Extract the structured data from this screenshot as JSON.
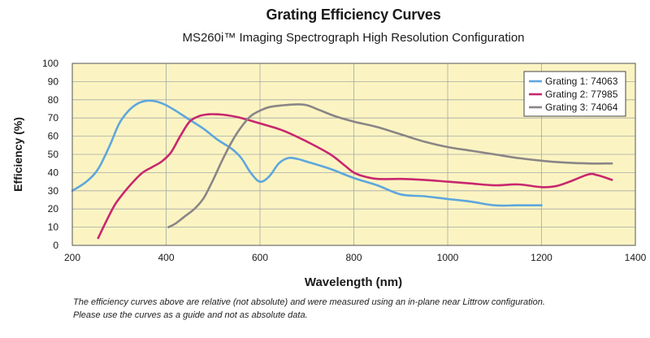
{
  "chart_data": {
    "type": "line",
    "title": "Grating Efficiency Curves",
    "subtitle": "MS260i™ Imaging Spectrograph High Resolution Configuration",
    "xlabel": "Wavelength (nm)",
    "ylabel": "Efficiency (%)",
    "xlim": [
      200,
      1400
    ],
    "ylim": [
      0,
      100
    ],
    "x_ticks": [
      200,
      400,
      600,
      800,
      1000,
      1200,
      1400
    ],
    "y_ticks": [
      0,
      10,
      20,
      30,
      40,
      50,
      60,
      70,
      80,
      90,
      100
    ],
    "grid": true,
    "legend_position": "top-right",
    "series": [
      {
        "name": "Grating 1: 74063",
        "color": "#5ea6de",
        "points": [
          [
            200,
            30
          ],
          [
            230,
            35
          ],
          [
            255,
            42
          ],
          [
            280,
            55
          ],
          [
            300,
            67
          ],
          [
            320,
            74
          ],
          [
            340,
            78
          ],
          [
            360,
            79.5
          ],
          [
            380,
            79
          ],
          [
            400,
            77
          ],
          [
            420,
            74
          ],
          [
            450,
            69
          ],
          [
            480,
            64
          ],
          [
            510,
            58
          ],
          [
            540,
            53
          ],
          [
            560,
            48
          ],
          [
            580,
            40
          ],
          [
            600,
            35
          ],
          [
            620,
            38
          ],
          [
            640,
            45
          ],
          [
            660,
            48
          ],
          [
            680,
            47.5
          ],
          [
            700,
            46
          ],
          [
            750,
            42
          ],
          [
            800,
            37
          ],
          [
            850,
            33
          ],
          [
            900,
            28
          ],
          [
            950,
            27
          ],
          [
            1000,
            25.5
          ],
          [
            1050,
            24
          ],
          [
            1100,
            22
          ],
          [
            1150,
            22
          ],
          [
            1200,
            22
          ]
        ]
      },
      {
        "name": "Grating 2: 77985",
        "color": "#c8276e",
        "points": [
          [
            255,
            4
          ],
          [
            270,
            12
          ],
          [
            290,
            22
          ],
          [
            310,
            29
          ],
          [
            330,
            35
          ],
          [
            350,
            40
          ],
          [
            370,
            43
          ],
          [
            390,
            46
          ],
          [
            410,
            51
          ],
          [
            430,
            60
          ],
          [
            450,
            68
          ],
          [
            470,
            71
          ],
          [
            490,
            72
          ],
          [
            510,
            72
          ],
          [
            530,
            71.5
          ],
          [
            560,
            70
          ],
          [
            600,
            67
          ],
          [
            650,
            63
          ],
          [
            700,
            57
          ],
          [
            750,
            50
          ],
          [
            780,
            44
          ],
          [
            800,
            40
          ],
          [
            820,
            38
          ],
          [
            850,
            36.5
          ],
          [
            900,
            36.5
          ],
          [
            950,
            36
          ],
          [
            1000,
            35
          ],
          [
            1050,
            34
          ],
          [
            1100,
            33
          ],
          [
            1150,
            33.5
          ],
          [
            1200,
            32
          ],
          [
            1230,
            32.5
          ],
          [
            1260,
            35
          ],
          [
            1300,
            39
          ],
          [
            1320,
            38.5
          ],
          [
            1350,
            36
          ]
        ]
      },
      {
        "name": "Grating 3: 74064",
        "color": "#8a8587",
        "points": [
          [
            405,
            10
          ],
          [
            420,
            12
          ],
          [
            440,
            16
          ],
          [
            460,
            20
          ],
          [
            480,
            26
          ],
          [
            500,
            36
          ],
          [
            520,
            47
          ],
          [
            540,
            57
          ],
          [
            560,
            65
          ],
          [
            580,
            71
          ],
          [
            600,
            74
          ],
          [
            620,
            76
          ],
          [
            650,
            77
          ],
          [
            680,
            77.5
          ],
          [
            700,
            77
          ],
          [
            730,
            74
          ],
          [
            760,
            71
          ],
          [
            800,
            68
          ],
          [
            850,
            65
          ],
          [
            900,
            61
          ],
          [
            950,
            57
          ],
          [
            1000,
            54
          ],
          [
            1050,
            52
          ],
          [
            1100,
            50
          ],
          [
            1150,
            48
          ],
          [
            1200,
            46.5
          ],
          [
            1250,
            45.5
          ],
          [
            1300,
            45
          ],
          [
            1350,
            45
          ]
        ]
      }
    ]
  },
  "footnotes": [
    "The efficiency curves above are relative (not absolute) and were measured using an in-plane near Littrow configuration.",
    "Please use the curves as a guide and not as absolute data."
  ]
}
